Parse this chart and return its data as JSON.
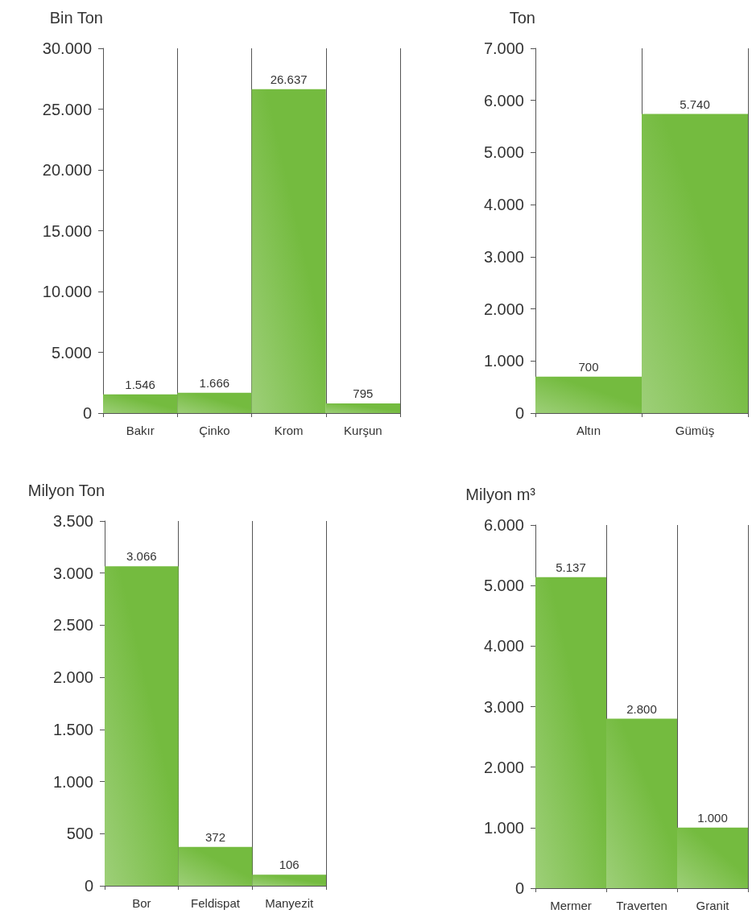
{
  "chart_data": [
    {
      "type": "bar",
      "ylabel": "Bin Ton",
      "categories": [
        "Bakır",
        "Çinko",
        "Krom",
        "Kurşun"
      ],
      "series": [
        {
          "color": "#74bb3f",
          "values": [
            1546,
            1666,
            26637,
            795
          ],
          "value_labels": [
            "1.546",
            "1.666",
            "26.637",
            "795"
          ]
        }
      ],
      "ylim": [
        0,
        30000
      ],
      "yticks": [
        {
          "value": 0,
          "label": "0"
        },
        {
          "value": 5000,
          "label": "5.000"
        },
        {
          "value": 10000,
          "label": "10.000"
        },
        {
          "value": 15000,
          "label": "15.000"
        },
        {
          "value": 20000,
          "label": "20.000"
        },
        {
          "value": 25000,
          "label": "25.000"
        },
        {
          "value": 30000,
          "label": "30.000"
        }
      ],
      "grid": "x"
    },
    {
      "type": "bar",
      "ylabel": "Ton",
      "categories": [
        "Altın",
        "Gümüş"
      ],
      "series": [
        {
          "color": "#74bb3f",
          "values": [
            700,
            5740
          ],
          "value_labels": [
            "700",
            "5.740"
          ]
        }
      ],
      "ylim": [
        0,
        7000
      ],
      "yticks": [
        {
          "value": 0,
          "label": "0"
        },
        {
          "value": 1000,
          "label": "1.000"
        },
        {
          "value": 2000,
          "label": "2.000"
        },
        {
          "value": 3000,
          "label": "3.000"
        },
        {
          "value": 4000,
          "label": "4.000"
        },
        {
          "value": 5000,
          "label": "5.000"
        },
        {
          "value": 6000,
          "label": "6.000"
        },
        {
          "value": 7000,
          "label": "7.000"
        }
      ],
      "grid": "x"
    },
    {
      "type": "bar",
      "ylabel": "Milyon Ton",
      "categories": [
        "Bor",
        "Feldispat",
        "Manyezit"
      ],
      "series": [
        {
          "color": "#74bb3f",
          "values": [
            3066,
            372,
            106
          ],
          "value_labels": [
            "3.066",
            "372",
            "106"
          ]
        }
      ],
      "ylim": [
        0,
        3500
      ],
      "yticks": [
        {
          "value": 0,
          "label": "0"
        },
        {
          "value": 500,
          "label": "500"
        },
        {
          "value": 1000,
          "label": "1.000"
        },
        {
          "value": 1500,
          "label": "1.500"
        },
        {
          "value": 2000,
          "label": "2.000"
        },
        {
          "value": 2500,
          "label": "2.500"
        },
        {
          "value": 3000,
          "label": "3.000"
        },
        {
          "value": 3500,
          "label": "3.500"
        }
      ],
      "grid": "x"
    },
    {
      "type": "bar",
      "ylabel": "Milyon m³",
      "categories": [
        "Mermer",
        "Traverten",
        "Granit"
      ],
      "series": [
        {
          "color": "#74bb3f",
          "values": [
            5137,
            2800,
            1000
          ],
          "value_labels": [
            "5.137",
            "2.800",
            "1.000"
          ]
        }
      ],
      "ylim": [
        0,
        6000
      ],
      "yticks": [
        {
          "value": 0,
          "label": "0"
        },
        {
          "value": 1000,
          "label": "1.000"
        },
        {
          "value": 2000,
          "label": "2.000"
        },
        {
          "value": 3000,
          "label": "3.000"
        },
        {
          "value": 4000,
          "label": "4.000"
        },
        {
          "value": 5000,
          "label": "5.000"
        },
        {
          "value": 6000,
          "label": "6.000"
        }
      ],
      "grid": "x"
    }
  ]
}
